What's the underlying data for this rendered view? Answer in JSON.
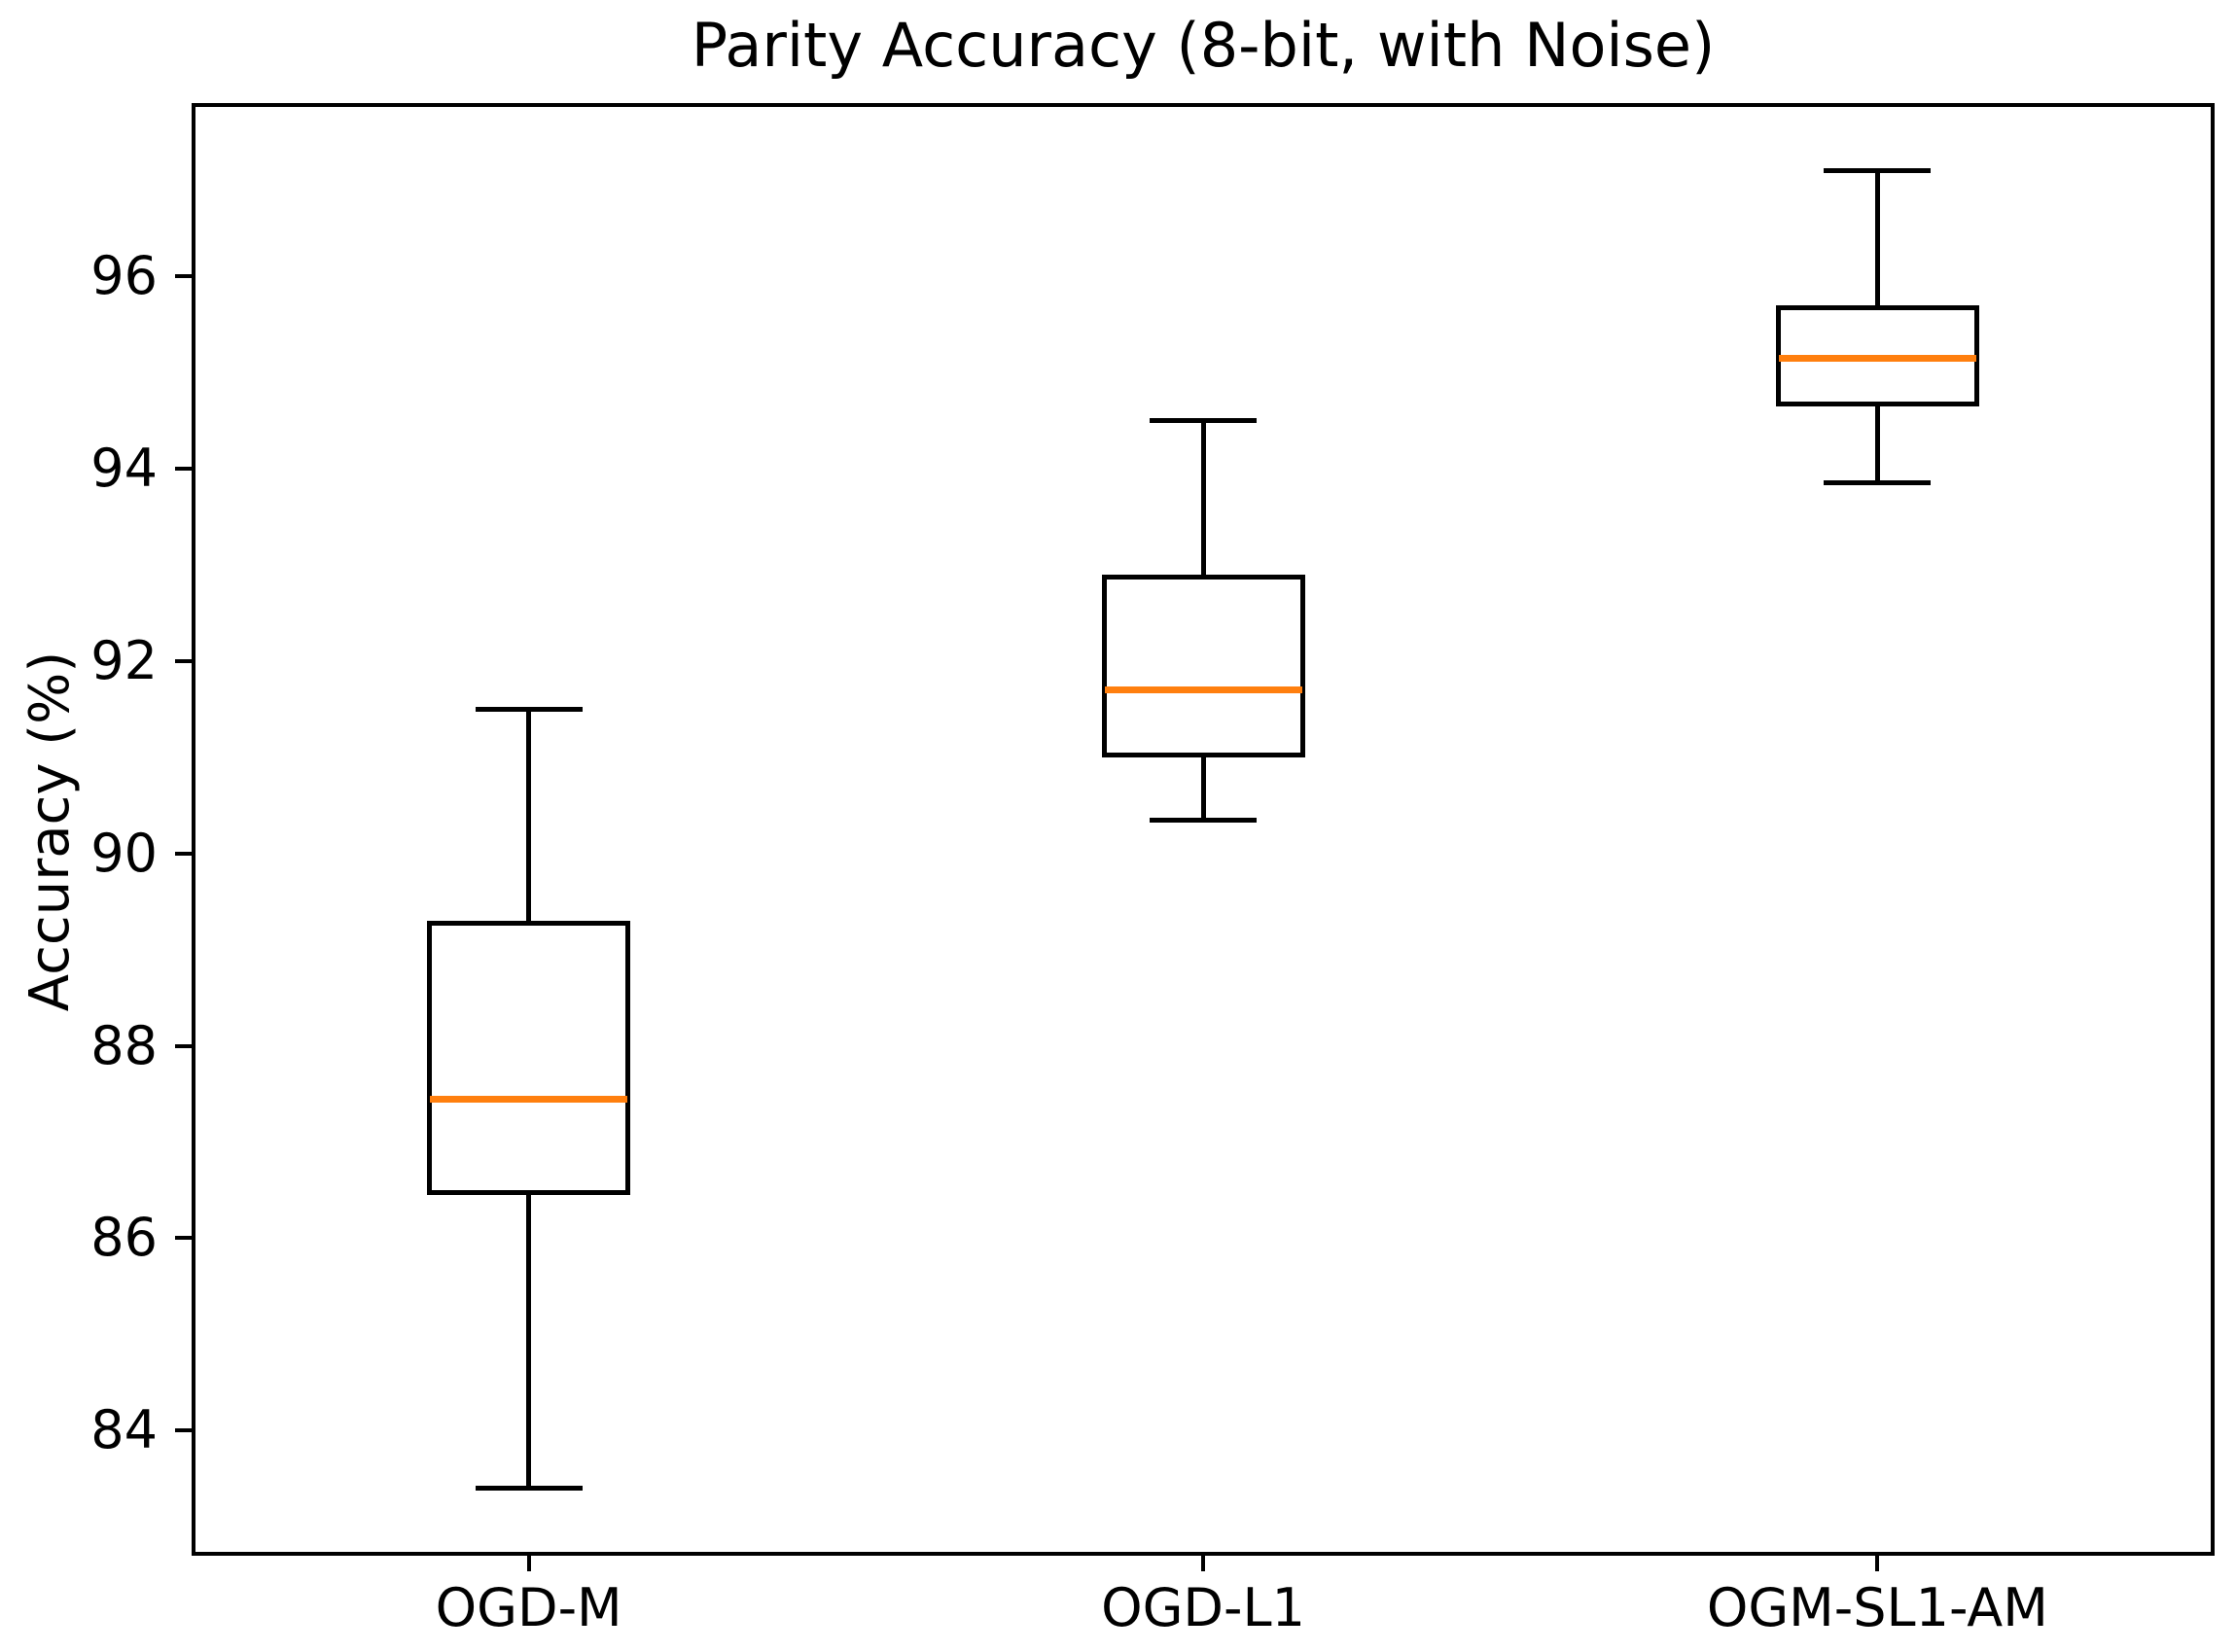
{
  "chart_data": {
    "type": "boxplot",
    "title": "Parity Accuracy (8-bit, with Noise)",
    "ylabel": "Accuracy (%)",
    "xlabel": "",
    "categories": [
      "OGD-M",
      "OGD-L1",
      "OGM-SL1-AM"
    ],
    "yticks": [
      84,
      86,
      88,
      90,
      92,
      94,
      96
    ],
    "ylim": [
      82.7,
      97.8
    ],
    "grid": false,
    "legend": false,
    "box_color": "#000000",
    "median_color": "#ff7f0e",
    "series": [
      {
        "name": "OGD-M",
        "whislo": 83.4,
        "q1": 86.45,
        "med": 87.45,
        "q3": 89.3,
        "whishi": 91.5
      },
      {
        "name": "OGD-L1",
        "whislo": 90.35,
        "q1": 91.0,
        "med": 91.7,
        "q3": 92.9,
        "whishi": 94.5
      },
      {
        "name": "OGM-SL1-AM",
        "whislo": 93.85,
        "q1": 94.65,
        "med": 95.15,
        "q3": 95.7,
        "whishi": 97.1
      }
    ]
  }
}
